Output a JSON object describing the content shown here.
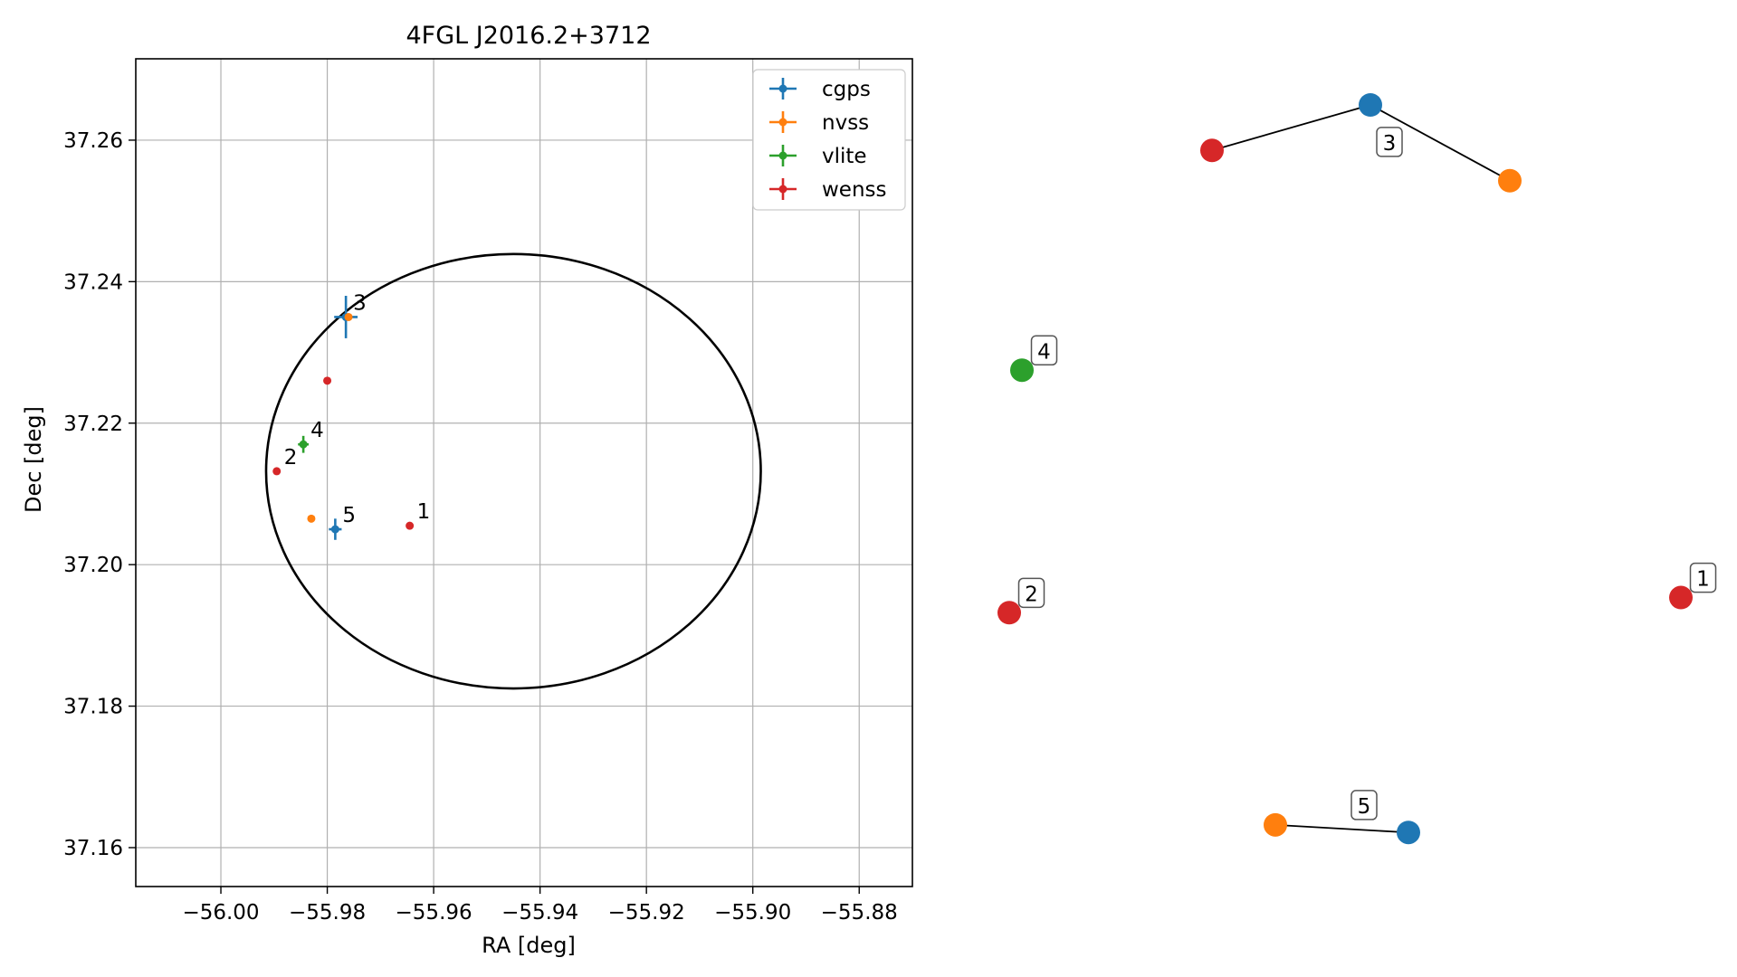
{
  "colors": {
    "cgps": "#1f77b4",
    "nvss": "#ff7f0e",
    "vlite": "#2ca02c",
    "wenss": "#d62728",
    "ellipse": "#000000",
    "grid": "#b0b0b0"
  },
  "chart_data": [
    {
      "type": "scatter",
      "title": "4FGL J2016.2+3712",
      "xlabel": "RA [deg]",
      "ylabel": "Dec [deg]",
      "xlim": [
        -56.016,
        -55.87
      ],
      "ylim": [
        37.1545,
        37.2715
      ],
      "xticks": [
        -56.0,
        -55.98,
        -55.96,
        -55.94,
        -55.92,
        -55.9,
        -55.88
      ],
      "xtick_labels": [
        "−56.00",
        "−55.98",
        "−55.96",
        "−55.94",
        "−55.92",
        "−55.90",
        "−55.88"
      ],
      "yticks": [
        37.16,
        37.18,
        37.2,
        37.22,
        37.24,
        37.26
      ],
      "ytick_labels": [
        "37.16",
        "37.18",
        "37.20",
        "37.22",
        "37.24",
        "37.26"
      ],
      "grid": true,
      "legend_position": "top-right",
      "series": [
        {
          "name": "cgps",
          "color_key": "cgps",
          "points": [
            {
              "x": -55.9765,
              "y": 37.235,
              "xerr": 0.0022,
              "yerr": 0.003
            },
            {
              "x": -55.9785,
              "y": 37.205,
              "xerr": 0.0012,
              "yerr": 0.0015
            }
          ]
        },
        {
          "name": "nvss",
          "color_key": "nvss",
          "points": [
            {
              "x": -55.976,
              "y": 37.235,
              "xerr": 0,
              "yerr": 0
            },
            {
              "x": -55.983,
              "y": 37.2065,
              "xerr": 0,
              "yerr": 0
            }
          ]
        },
        {
          "name": "vlite",
          "color_key": "vlite",
          "points": [
            {
              "x": -55.9845,
              "y": 37.217,
              "xerr": 0.001,
              "yerr": 0.0012
            }
          ]
        },
        {
          "name": "wenss",
          "color_key": "wenss",
          "points": [
            {
              "x": -55.98,
              "y": 37.226,
              "xerr": 0,
              "yerr": 0
            },
            {
              "x": -55.9895,
              "y": 37.2132,
              "xerr": 0,
              "yerr": 0
            },
            {
              "x": -55.9645,
              "y": 37.2055,
              "xerr": 0,
              "yerr": 0
            }
          ]
        }
      ],
      "ellipse": {
        "center_x": -55.945,
        "center_y": 37.2132,
        "semi_x": 0.0465,
        "semi_y": 0.0307
      },
      "annotations": [
        {
          "text": "1",
          "x": -55.9645,
          "y": 37.2055
        },
        {
          "text": "2",
          "x": -55.9895,
          "y": 37.2132
        },
        {
          "text": "3",
          "x": -55.9765,
          "y": 37.235
        },
        {
          "text": "4",
          "x": -55.9845,
          "y": 37.217
        },
        {
          "text": "5",
          "x": -55.9785,
          "y": 37.205
        }
      ]
    },
    {
      "type": "scatter",
      "title": "",
      "axes_visible": false,
      "xlim": [
        0,
        1
      ],
      "ylim": [
        0,
        1
      ],
      "nodes": [
        {
          "id": "n3c",
          "x": 0.57,
          "y": 0.98,
          "color_key": "cgps"
        },
        {
          "id": "n3w",
          "x": 0.32,
          "y": 0.92,
          "color_key": "wenss"
        },
        {
          "id": "n3n",
          "x": 0.79,
          "y": 0.88,
          "color_key": "nvss"
        },
        {
          "id": "n4",
          "x": 0.02,
          "y": 0.63,
          "color_key": "vlite"
        },
        {
          "id": "n2",
          "x": 0.0,
          "y": 0.31,
          "color_key": "wenss"
        },
        {
          "id": "n1",
          "x": 1.06,
          "y": 0.33,
          "color_key": "wenss"
        },
        {
          "id": "n5n",
          "x": 0.42,
          "y": 0.03,
          "color_key": "nvss"
        },
        {
          "id": "n5c",
          "x": 0.63,
          "y": 0.02,
          "color_key": "cgps"
        }
      ],
      "edges": [
        [
          "n3w",
          "n3c"
        ],
        [
          "n3c",
          "n3n"
        ],
        [
          "n5n",
          "n5c"
        ]
      ],
      "labels": [
        {
          "text": "3",
          "x": 0.6,
          "y": 0.93
        },
        {
          "text": "4",
          "x": 0.055,
          "y": 0.655
        },
        {
          "text": "2",
          "x": 0.035,
          "y": 0.335
        },
        {
          "text": "1",
          "x": 1.095,
          "y": 0.355
        },
        {
          "text": "5",
          "x": 0.56,
          "y": 0.055
        }
      ]
    }
  ]
}
